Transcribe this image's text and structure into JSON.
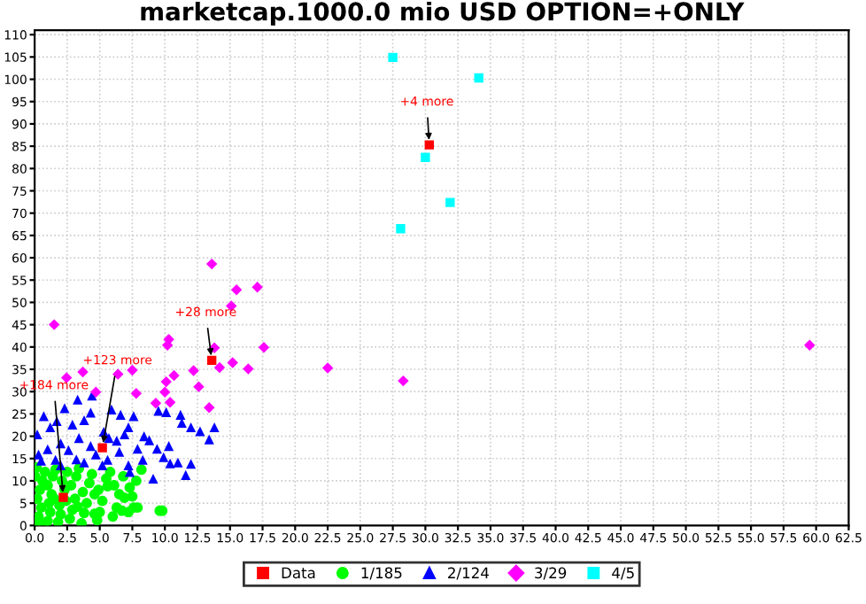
{
  "chart_data": {
    "type": "scatter",
    "title": "marketcap.1000.0 mio USD OPTION=+ONLY",
    "xlim": [
      0,
      62.5
    ],
    "ylim": [
      0,
      111
    ],
    "xticks": [
      {
        "value": 0,
        "label": "0.0"
      },
      {
        "value": 2.5,
        "label": "2.5"
      },
      {
        "value": 5,
        "label": "5.0"
      },
      {
        "value": 7.5,
        "label": "7.5"
      },
      {
        "value": 10,
        "label": "10.0"
      },
      {
        "value": 12.5,
        "label": "12.5"
      },
      {
        "value": 15,
        "label": "15.0"
      },
      {
        "value": 17.5,
        "label": "17.5"
      },
      {
        "value": 20,
        "label": "20.0"
      },
      {
        "value": 22.5,
        "label": "22.5"
      },
      {
        "value": 25,
        "label": "25.0"
      },
      {
        "value": 27.5,
        "label": "27.5"
      },
      {
        "value": 30,
        "label": "30.0"
      },
      {
        "value": 32.5,
        "label": "32.5"
      },
      {
        "value": 35,
        "label": "35.0"
      },
      {
        "value": 37.5,
        "label": "37.5"
      },
      {
        "value": 40,
        "label": "40.0"
      },
      {
        "value": 42.5,
        "label": "42.5"
      },
      {
        "value": 45,
        "label": "45.0"
      },
      {
        "value": 47.5,
        "label": "47.5"
      },
      {
        "value": 50,
        "label": "50.0"
      },
      {
        "value": 52.5,
        "label": "52.5"
      },
      {
        "value": 55,
        "label": "55.0"
      },
      {
        "value": 57.5,
        "label": "57.5"
      },
      {
        "value": 60,
        "label": "60.0"
      },
      {
        "value": 62.5,
        "label": "62.5"
      }
    ],
    "yticks": [
      0,
      5,
      10,
      15,
      20,
      25,
      30,
      35,
      40,
      45,
      50,
      55,
      60,
      65,
      70,
      75,
      80,
      85,
      90,
      95,
      100,
      105,
      110
    ],
    "grid": true,
    "legend": "bottom",
    "series": [
      {
        "name": "Data",
        "color": "#ff0000",
        "marker": "square",
        "x": [
          2.2,
          5.2,
          13.6,
          30.3
        ],
        "values": [
          6.3,
          17.4,
          37.0,
          85.3
        ]
      },
      {
        "name": "1/185",
        "color": "#00ff00",
        "marker": "circle",
        "x": [
          0.1,
          0.3,
          0.5,
          0.2,
          0.4,
          0.6,
          0.8,
          1.0,
          1.2,
          1.1,
          1.3,
          1.0,
          1.4,
          1.6,
          1.8,
          2.0,
          1.9,
          2.3,
          2.1,
          2.5,
          2.7,
          2.9,
          3.1,
          2.8,
          3.2,
          3.4,
          3.6,
          3.8,
          4.0,
          3.7,
          4.2,
          4.4,
          4.8,
          5.0,
          5.2,
          4.9,
          5.5,
          5.8,
          6.0,
          6.3,
          6.5,
          6.1,
          6.8,
          7.2,
          7.5,
          7.3,
          7.8,
          7.9,
          6.7,
          9.8,
          8.2,
          0.05,
          0.15,
          0.7,
          1.5,
          2.4,
          3.3,
          4.6,
          5.6,
          6.9,
          7.6,
          9.6,
          4.6
        ],
        "values": [
          0.5,
          2.0,
          4.0,
          6.0,
          8.0,
          10.0,
          12.0,
          1.0,
          3.0,
          5.0,
          7.0,
          9.0,
          11.0,
          12.5,
          0.8,
          2.5,
          4.5,
          8.0,
          10.0,
          12.0,
          1.5,
          3.5,
          6.0,
          9.0,
          11.0,
          12.8,
          0.5,
          2.8,
          5.0,
          7.5,
          9.5,
          11.5,
          1.2,
          3.0,
          5.5,
          8.0,
          10.5,
          12.0,
          2.0,
          4.0,
          7.0,
          9.0,
          11.0,
          3.0,
          6.5,
          8.5,
          10.0,
          4.0,
          3.3,
          3.3,
          12.5,
          11.0,
          13.0,
          0.2,
          6.0,
          5.5,
          4.2,
          7.0,
          8.8,
          6.2,
          4.0,
          3.3,
          2.6
        ]
      },
      {
        "name": "2/124",
        "color": "#0000ff",
        "marker": "triangle",
        "x": [
          3.3,
          4.4,
          0.7,
          0.2,
          1.7,
          4.3,
          5.9,
          6.6,
          7.6,
          9.5,
          10.1,
          11.2,
          11.3,
          12.0,
          12.7,
          13.8,
          13.4,
          12.0,
          11.6,
          9.1,
          10.4,
          8.3,
          7.2,
          7.3,
          9.4,
          10.3,
          8.4,
          6.9,
          5.7,
          4.7,
          3.4,
          2.0,
          1.2,
          2.9,
          0.3,
          1.0,
          1.6,
          3.8,
          5.6,
          6.5,
          6.3,
          5.2,
          2.6,
          3.2,
          2.0,
          0.5,
          4.3,
          7.9,
          8.8,
          9.9,
          11.0,
          5.3,
          3.8,
          2.3,
          7.2
        ],
        "values": [
          28.2,
          29.1,
          24.5,
          20.4,
          23.4,
          25.3,
          26.0,
          24.8,
          24.5,
          25.7,
          25.4,
          24.8,
          23.0,
          22.0,
          21.1,
          22.0,
          19.3,
          13.8,
          11.3,
          10.5,
          13.9,
          14.7,
          13.5,
          12.0,
          17.2,
          17.8,
          20.0,
          20.4,
          19.6,
          15.9,
          19.6,
          18.4,
          22.0,
          22.6,
          15.9,
          17.1,
          14.7,
          14.1,
          14.7,
          16.5,
          19.0,
          13.5,
          16.9,
          14.8,
          13.5,
          14.5,
          17.8,
          17.2,
          19.1,
          15.3,
          14.1,
          21.0,
          23.6,
          26.3,
          22.0
        ]
      },
      {
        "name": "3/29",
        "color": "#ff00ff",
        "marker": "diamond",
        "x": [
          1.5,
          2.45,
          3.7,
          7.5,
          6.4,
          7.8,
          4.7,
          10.3,
          10.2,
          10.1,
          10.7,
          10.0,
          12.2,
          12.6,
          13.6,
          13.8,
          14.2,
          15.1,
          15.5,
          15.2,
          16.4,
          17.1,
          17.6,
          22.5,
          28.3,
          59.5,
          13.4,
          10.4,
          9.3
        ],
        "values": [
          45.0,
          33.1,
          34.4,
          34.8,
          33.9,
          29.6,
          29.9,
          41.7,
          40.4,
          32.2,
          33.6,
          29.9,
          34.7,
          31.1,
          58.6,
          39.8,
          35.4,
          49.2,
          52.8,
          36.5,
          35.1,
          53.4,
          39.9,
          35.3,
          32.4,
          40.4,
          26.4,
          27.6,
          27.4
        ]
      },
      {
        "name": "4/5",
        "color": "#00ffff",
        "marker": "square",
        "x": [
          27.5,
          34.1,
          30.0,
          31.9,
          28.1
        ],
        "values": [
          104.9,
          100.3,
          82.5,
          72.4,
          66.5
        ]
      }
    ],
    "annotations": [
      {
        "text": "+184 more",
        "x": 2.2,
        "y": 6.3
      },
      {
        "text": "+123 more",
        "x": 5.2,
        "y": 17.4
      },
      {
        "text": "+28 more",
        "x": 13.6,
        "y": 37.0
      },
      {
        "text": "+4 more",
        "x": 30.3,
        "y": 85.3
      }
    ]
  }
}
